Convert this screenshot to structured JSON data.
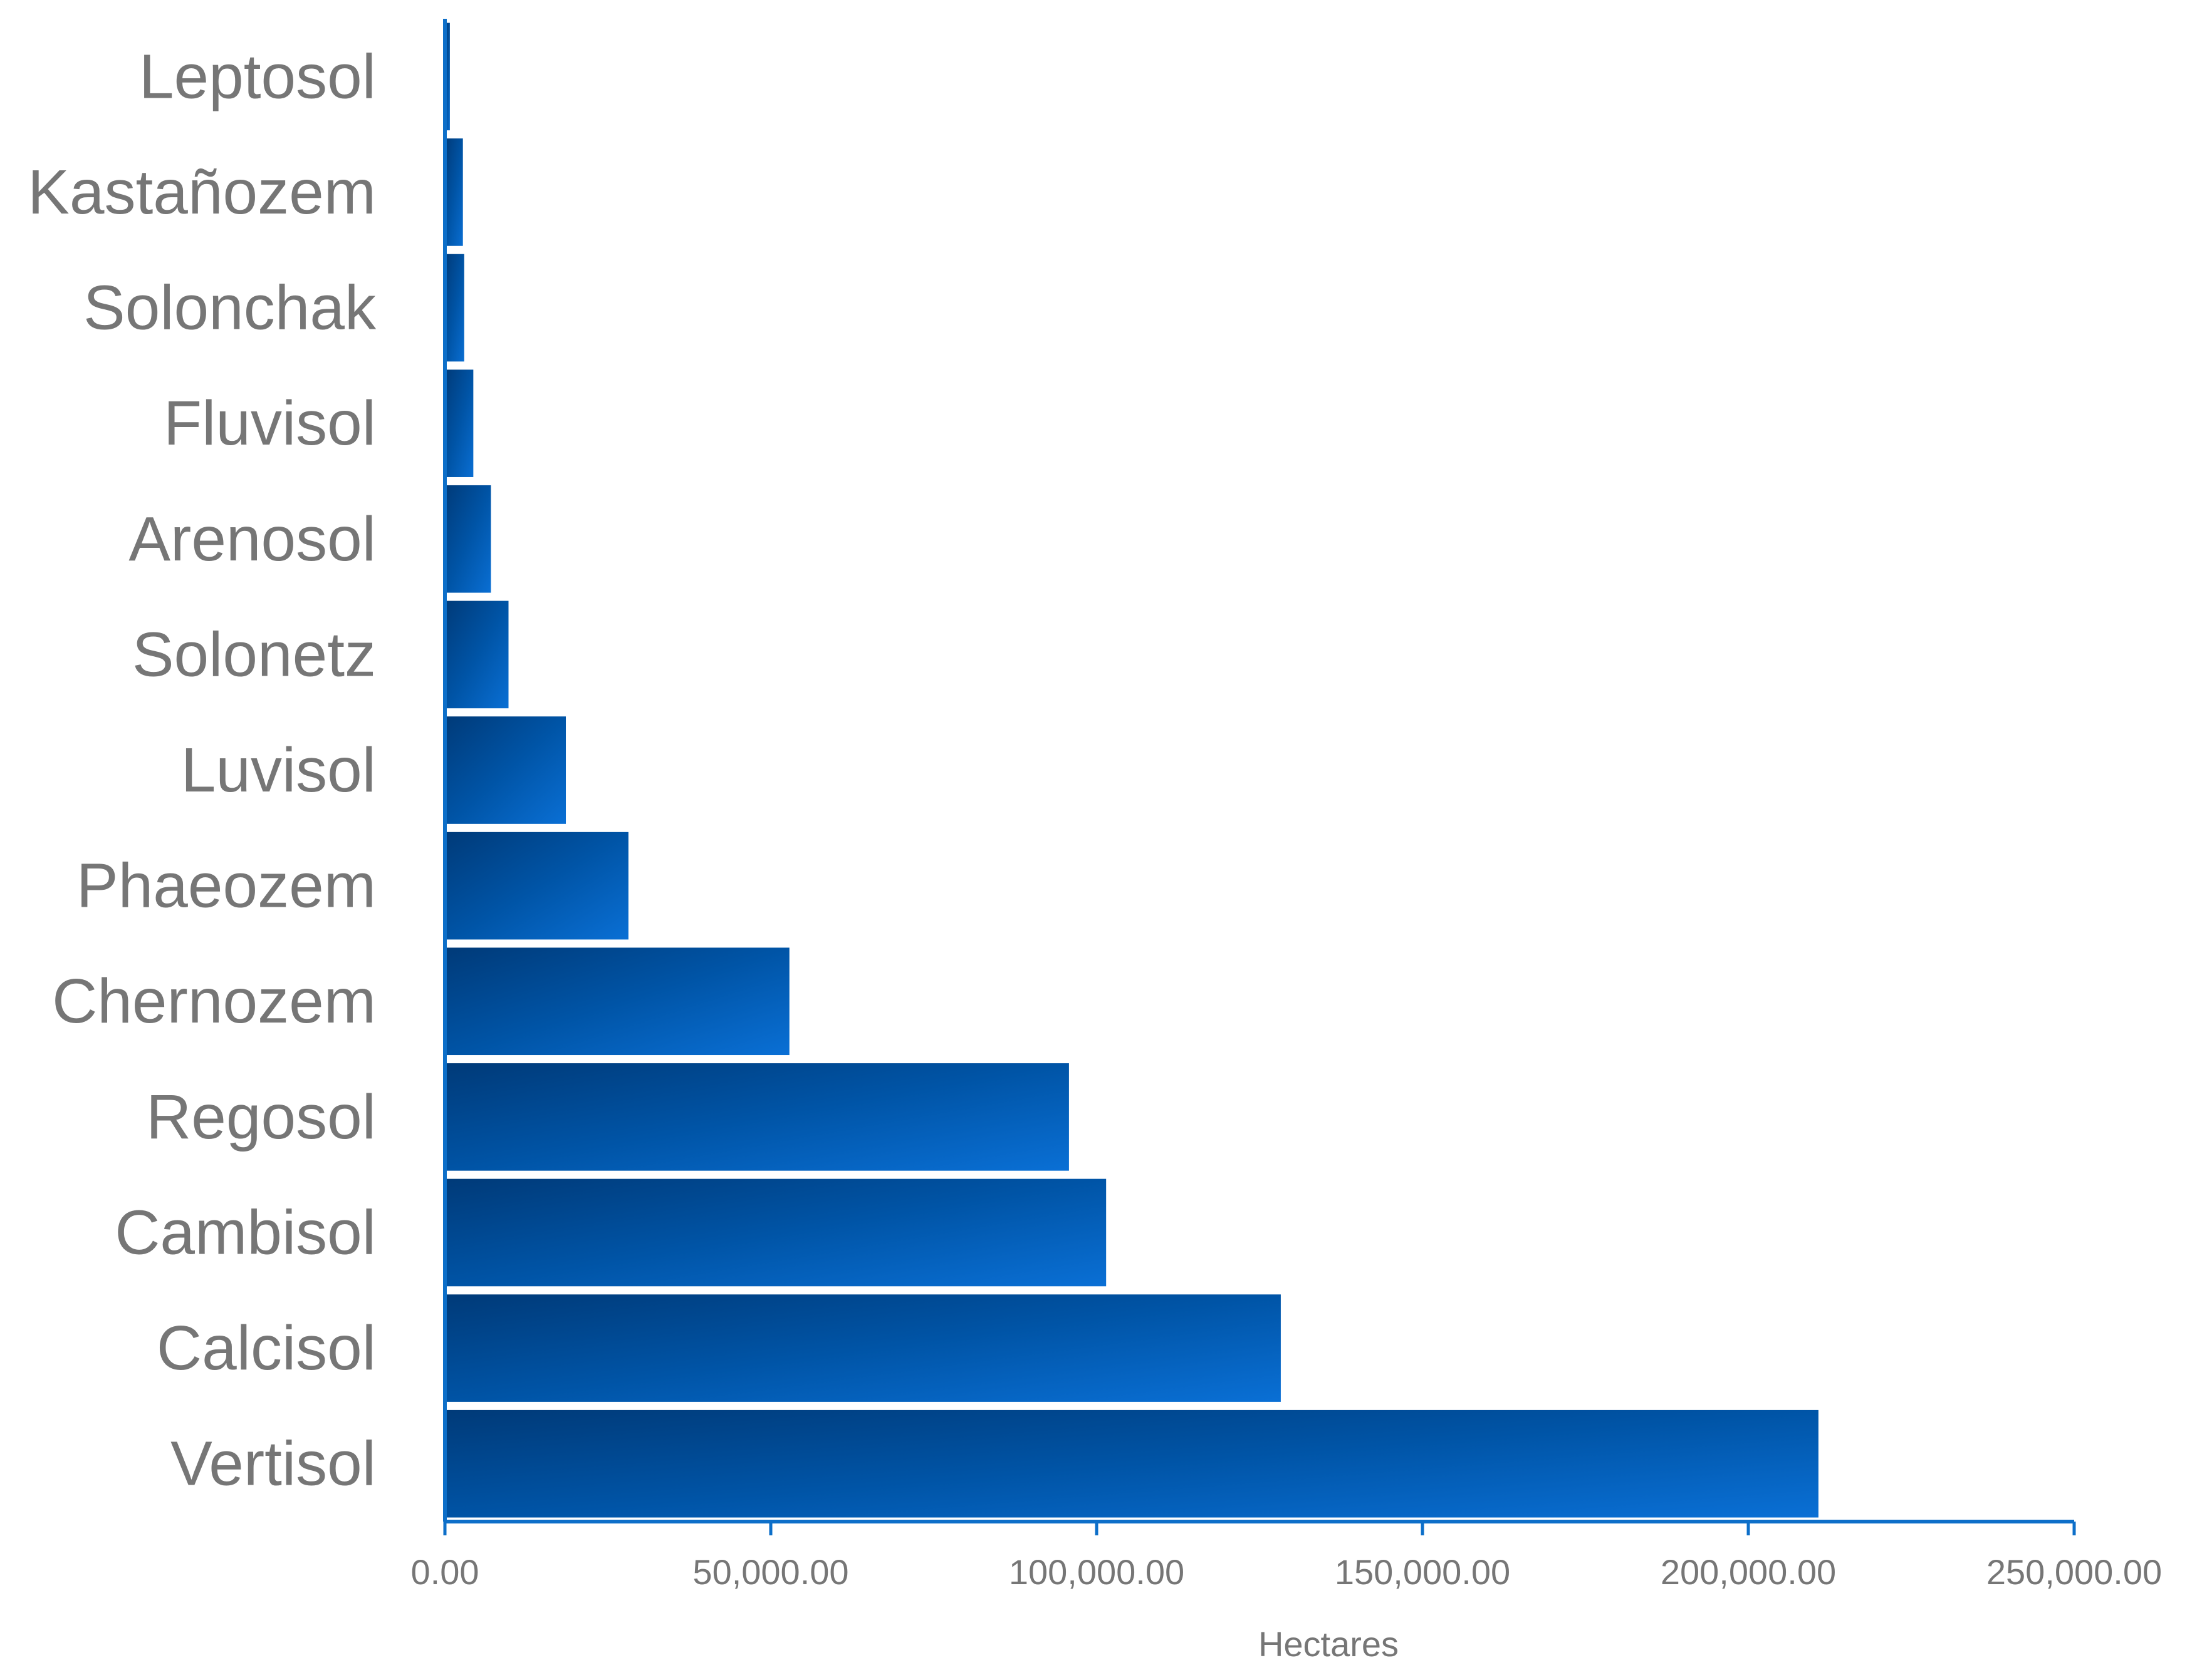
{
  "chart_data": {
    "type": "bar",
    "orientation": "horizontal",
    "categories": [
      "Leptosol",
      "Kastañozem",
      "Solonchak",
      "Fluvisol",
      "Arenosol",
      "Solonetz",
      "Luvisol",
      "Phaeozem",
      "Chernozem",
      "Regosol",
      "Cambisol",
      "Calcisol",
      "Vertisol"
    ],
    "values": [
      1000,
      3000,
      3200,
      4600,
      7300,
      10000,
      18800,
      28400,
      53100,
      96000,
      101700,
      128500,
      211000
    ],
    "xlabel": "Hectares",
    "ylabel": "",
    "xlim": [
      0,
      250000
    ],
    "x_ticks": [
      "0.00",
      "50,000.00",
      "100,000.00",
      "150,000.00",
      "200,000.00",
      "250,000.00"
    ],
    "grid": false,
    "colors": {
      "bar_dark": "#003a78",
      "bar_mid": "#0054a6",
      "bar_light": "#0a70d6",
      "axis": "#0d6fc9",
      "text": "#767676"
    }
  }
}
